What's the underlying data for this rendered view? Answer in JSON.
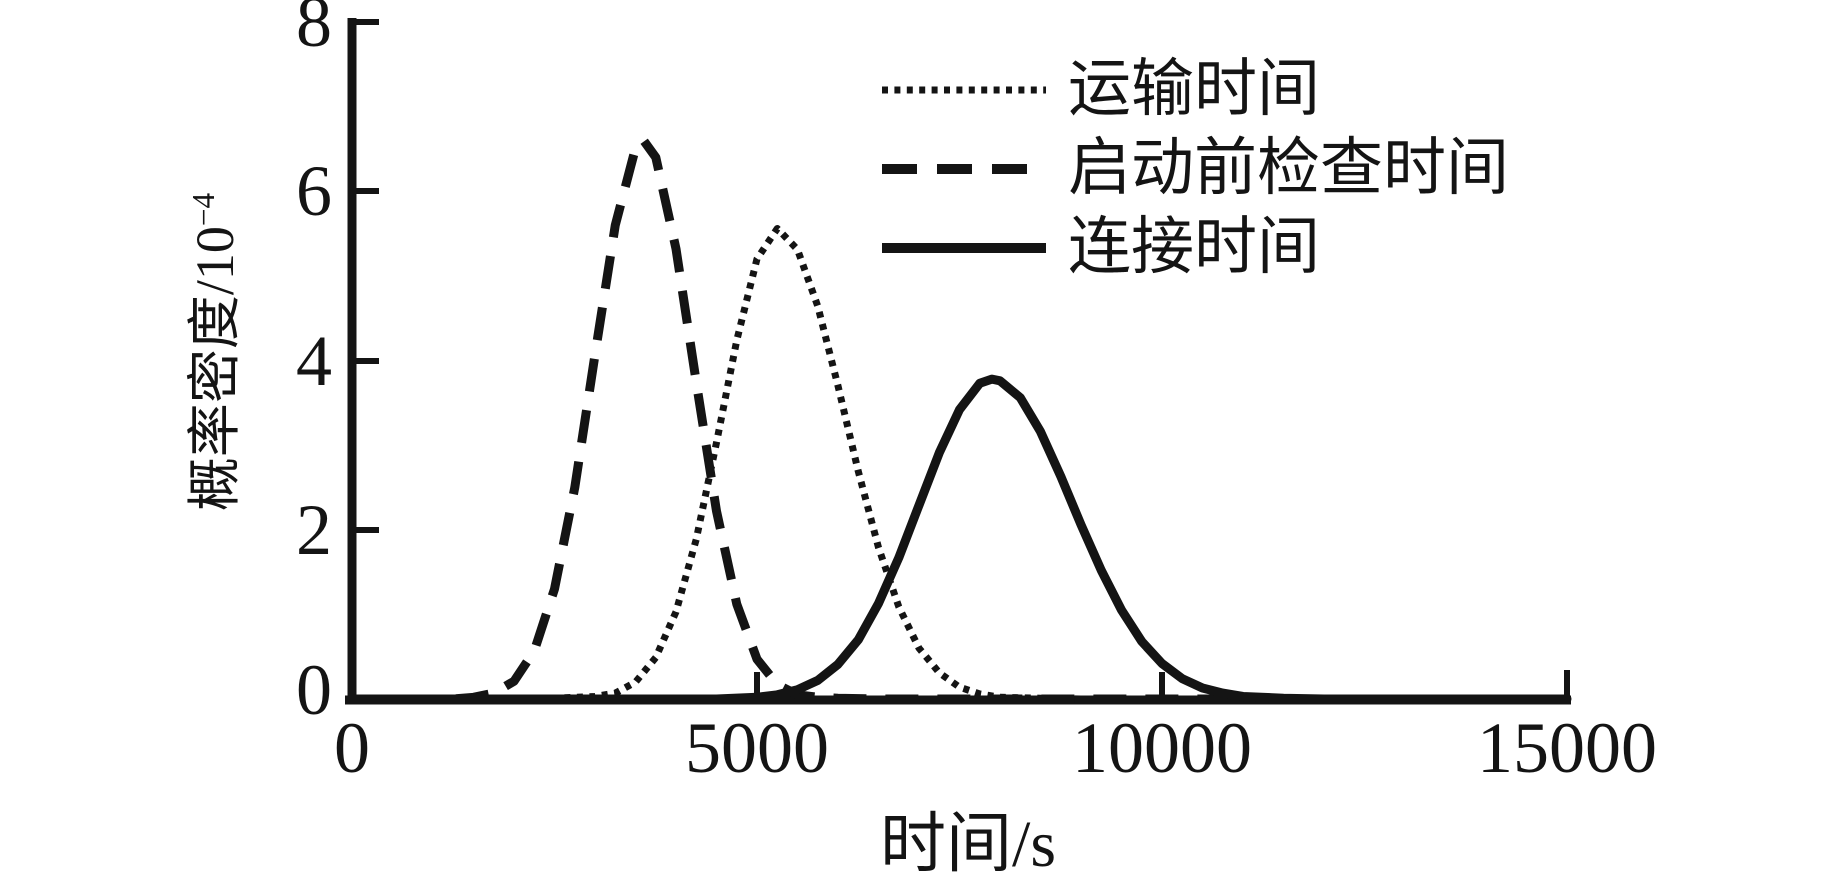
{
  "figure": {
    "background": "#ffffff",
    "ink_color": "#141414"
  },
  "chart_data": {
    "type": "line",
    "title": "",
    "xlabel": "时间/s",
    "ylabel": "概率密度/10⁻⁴",
    "ylabel_base": "概率密度/10",
    "ylabel_exponent": "−4",
    "xlim": [
      0,
      15000
    ],
    "ylim": [
      0,
      8
    ],
    "x_ticks": [
      0,
      5000,
      10000,
      15000
    ],
    "x_tick_labels": [
      "0",
      "5000",
      "10000",
      "15000"
    ],
    "y_ticks": [
      0,
      2,
      4,
      6,
      8
    ],
    "y_tick_labels": [
      "0",
      "2",
      "4",
      "6",
      "8"
    ],
    "grid": false,
    "legend_position": "upper-right-inside",
    "y_unit": "1e-4",
    "series": [
      {
        "name": "运输时间",
        "style": "dotted",
        "color": "#141414",
        "peak": {
          "x": 5250,
          "y": 5.56
        },
        "points": [
          [
            0,
            0
          ],
          [
            2000,
            0
          ],
          [
            2500,
            0.01
          ],
          [
            3000,
            0.03
          ],
          [
            3250,
            0.07
          ],
          [
            3500,
            0.2
          ],
          [
            3750,
            0.49
          ],
          [
            4000,
            1.03
          ],
          [
            4250,
            1.89
          ],
          [
            4500,
            3.03
          ],
          [
            4750,
            4.24
          ],
          [
            5000,
            5.2
          ],
          [
            5250,
            5.56
          ],
          [
            5500,
            5.31
          ],
          [
            5750,
            4.64
          ],
          [
            6000,
            3.7
          ],
          [
            6250,
            2.69
          ],
          [
            6500,
            1.79
          ],
          [
            6750,
            1.09
          ],
          [
            7000,
            0.6
          ],
          [
            7250,
            0.31
          ],
          [
            7500,
            0.14
          ],
          [
            7750,
            0.06
          ],
          [
            8000,
            0.02
          ],
          [
            8500,
            0.01
          ],
          [
            9000,
            0
          ],
          [
            15000,
            0
          ]
        ]
      },
      {
        "name": "启动前检查时间",
        "style": "dashed",
        "color": "#141414",
        "peak": {
          "x": 3600,
          "y": 6.6
        },
        "points": [
          [
            0,
            0
          ],
          [
            1250,
            0
          ],
          [
            1500,
            0.02
          ],
          [
            1750,
            0.07
          ],
          [
            2000,
            0.21
          ],
          [
            2250,
            0.57
          ],
          [
            2500,
            1.3
          ],
          [
            2750,
            2.5
          ],
          [
            3000,
            4.07
          ],
          [
            3250,
            5.6
          ],
          [
            3500,
            6.51
          ],
          [
            3600,
            6.6
          ],
          [
            3750,
            6.4
          ],
          [
            4000,
            5.32
          ],
          [
            4250,
            3.74
          ],
          [
            4500,
            2.22
          ],
          [
            4750,
            1.12
          ],
          [
            5000,
            0.47
          ],
          [
            5250,
            0.17
          ],
          [
            5500,
            0.05
          ],
          [
            5750,
            0.02
          ],
          [
            6000,
            0.01
          ],
          [
            6500,
            0
          ],
          [
            15000,
            0
          ]
        ]
      },
      {
        "name": "连接时间",
        "style": "solid",
        "color": "#141414",
        "peak": {
          "x": 7900,
          "y": 3.78
        },
        "points": [
          [
            0,
            0
          ],
          [
            4500,
            0
          ],
          [
            5000,
            0.02
          ],
          [
            5250,
            0.05
          ],
          [
            5500,
            0.11
          ],
          [
            5750,
            0.22
          ],
          [
            6000,
            0.41
          ],
          [
            6250,
            0.7
          ],
          [
            6500,
            1.13
          ],
          [
            6750,
            1.67
          ],
          [
            7000,
            2.29
          ],
          [
            7250,
            2.91
          ],
          [
            7500,
            3.42
          ],
          [
            7750,
            3.73
          ],
          [
            7900,
            3.78
          ],
          [
            8000,
            3.76
          ],
          [
            8250,
            3.56
          ],
          [
            8500,
            3.16
          ],
          [
            8750,
            2.63
          ],
          [
            9000,
            2.06
          ],
          [
            9250,
            1.52
          ],
          [
            9500,
            1.05
          ],
          [
            9750,
            0.68
          ],
          [
            10000,
            0.42
          ],
          [
            10250,
            0.24
          ],
          [
            10500,
            0.13
          ],
          [
            10750,
            0.07
          ],
          [
            11000,
            0.03
          ],
          [
            11500,
            0.01
          ],
          [
            12000,
            0
          ],
          [
            15000,
            0
          ]
        ]
      }
    ]
  }
}
